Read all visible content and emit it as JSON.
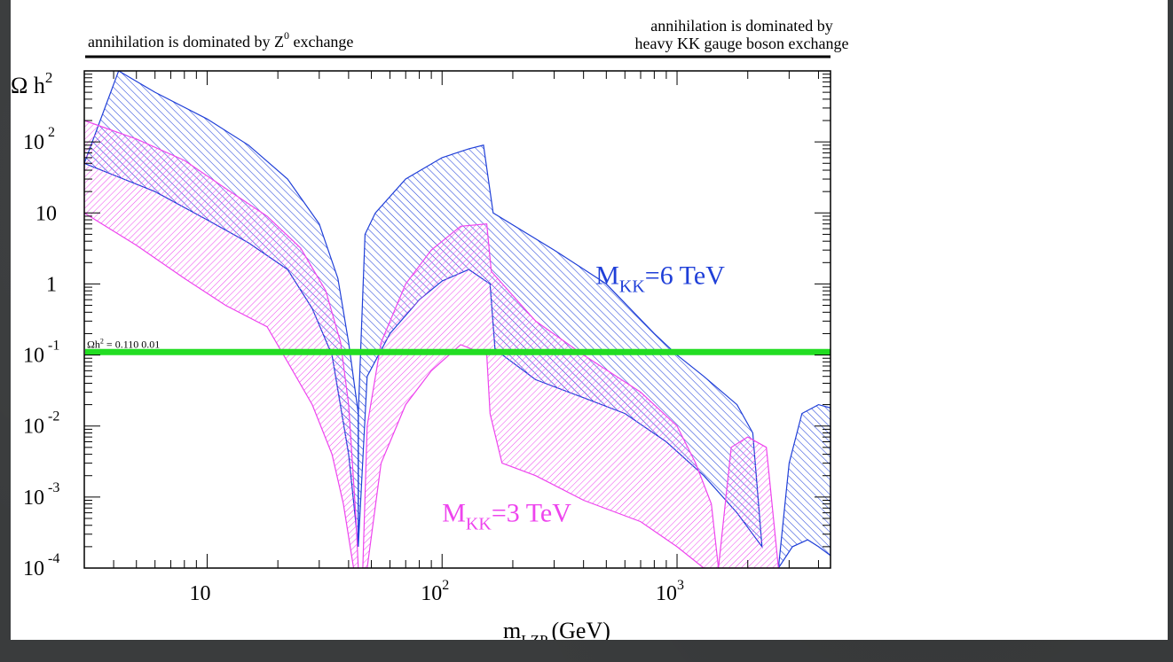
{
  "chart_data": {
    "type": "area",
    "x_scale": "log",
    "y_scale": "log",
    "xlim": [
      3,
      4500
    ],
    "ylim": [
      0.0001,
      1000
    ],
    "ylabel": "Ω h",
    "ylabel_sup": "2",
    "xlabel_main": "m",
    "xlabel_sub": "LZP",
    "xlabel_unit": "(GeV)",
    "x_ticks": [
      {
        "value": 10,
        "base": "10",
        "exp": ""
      },
      {
        "value": 100,
        "base": "10",
        "exp": "2"
      },
      {
        "value": 1000,
        "base": "10",
        "exp": "3"
      }
    ],
    "y_ticks": [
      {
        "value": 100,
        "base": "10",
        "exp": "2"
      },
      {
        "value": 10,
        "base": "10",
        "exp": ""
      },
      {
        "value": 1,
        "base": "1",
        "exp": ""
      },
      {
        "value": 0.1,
        "base": "10",
        "exp": "-1"
      },
      {
        "value": 0.01,
        "base": "10",
        "exp": "-2"
      },
      {
        "value": 0.001,
        "base": "10",
        "exp": "-3"
      },
      {
        "value": 0.0001,
        "base": "10",
        "exp": "-4"
      }
    ],
    "header_left": {
      "text": "annihilation is dominated by Z",
      "sup": "0",
      "tail": " exchange"
    },
    "header_right": {
      "line1": "annihilation is dominated by",
      "line2": "heavy KK gauge boson exchange"
    },
    "reference_line": {
      "value": 0.11,
      "label_pre": "Ωh",
      "label_sup": "2",
      "label_post": " = 0.110    0.01",
      "color": "#22dd22"
    },
    "series": [
      {
        "label_main": "M",
        "label_sub": "KK",
        "label_tail": "=6 TeV",
        "color": "#1f3fd8",
        "hatch": "backslash",
        "label_at": [
          450,
          1.0
        ],
        "bands": [
          {
            "upper": [
              [
                4.2,
                1000
              ],
              [
                6,
                500
              ],
              [
                10,
                210
              ],
              [
                15,
                90
              ],
              [
                22,
                30
              ],
              [
                30,
                7
              ],
              [
                36,
                1.2
              ],
              [
                40,
                0.15
              ],
              [
                44,
                0.015
              ]
            ],
            "lower": [
              [
                3,
                50
              ],
              [
                6,
                20
              ],
              [
                10,
                8
              ],
              [
                15,
                3.8
              ],
              [
                22,
                1.6
              ],
              [
                28,
                0.45
              ],
              [
                34,
                0.1
              ],
              [
                40,
                0.004
              ],
              [
                44,
                0.0002
              ]
            ]
          },
          {
            "upper": [
              [
                44,
                0.015
              ],
              [
                47,
                5
              ],
              [
                52,
                10
              ],
              [
                70,
                30
              ],
              [
                100,
                60
              ],
              [
                130,
                80
              ],
              [
                150,
                90
              ],
              [
                165,
                10
              ],
              [
                300,
                3
              ],
              [
                500,
                1
              ],
              [
                800,
                0.2
              ],
              [
                1000,
                0.1
              ],
              [
                1300,
                0.05
              ],
              [
                1800,
                0.02
              ],
              [
                2100,
                0.008
              ],
              [
                2300,
                0.0002
              ]
            ],
            "lower": [
              [
                44,
                0.0002
              ],
              [
                48,
                0.05
              ],
              [
                60,
                0.2
              ],
              [
                80,
                0.6
              ],
              [
                100,
                1.1
              ],
              [
                130,
                1.6
              ],
              [
                160,
                1
              ],
              [
                168,
                0.12
              ],
              [
                250,
                0.045
              ],
              [
                400,
                0.025
              ],
              [
                600,
                0.015
              ],
              [
                900,
                0.006
              ],
              [
                1300,
                0.002
              ],
              [
                1800,
                0.0006
              ],
              [
                2100,
                0.0003
              ],
              [
                2300,
                0.0002
              ]
            ]
          },
          {
            "upper": [
              [
                2700,
                0.0001
              ],
              [
                3000,
                0.003
              ],
              [
                3400,
                0.015
              ],
              [
                4000,
                0.02
              ],
              [
                4500,
                0.018
              ]
            ],
            "lower": [
              [
                2700,
                0.0001
              ],
              [
                3100,
                0.0002
              ],
              [
                3600,
                0.00025
              ],
              [
                4000,
                0.0002
              ],
              [
                4500,
                0.00015
              ]
            ]
          }
        ]
      },
      {
        "label_main": "M",
        "label_sub": "KK",
        "label_tail": "=3 TeV",
        "color": "#ee44ee",
        "hatch": "slash",
        "label_at": [
          100,
          0.00045
        ],
        "bands": [
          {
            "upper": [
              [
                3,
                200
              ],
              [
                5,
                110
              ],
              [
                8,
                55
              ],
              [
                12,
                22
              ],
              [
                18,
                9
              ],
              [
                25,
                3.2
              ],
              [
                32,
                0.8
              ],
              [
                37,
                0.15
              ],
              [
                40,
                0.02
              ],
              [
                43,
                0.0005
              ],
              [
                44,
                0.0001
              ]
            ],
            "lower": [
              [
                3,
                10
              ],
              [
                5,
                3.5
              ],
              [
                8,
                1.2
              ],
              [
                12,
                0.5
              ],
              [
                18,
                0.25
              ],
              [
                22,
                0.08
              ],
              [
                28,
                0.02
              ],
              [
                34,
                0.004
              ],
              [
                38,
                0.0008
              ],
              [
                42,
                0.0001
              ]
            ]
          },
          {
            "upper": [
              [
                46,
                0.0001
              ],
              [
                48,
                0.01
              ],
              [
                55,
                0.15
              ],
              [
                70,
                1
              ],
              [
                90,
                3
              ],
              [
                120,
                6.5
              ],
              [
                155,
                7
              ],
              [
                162,
                1.5
              ],
              [
                250,
                0.3
              ],
              [
                400,
                0.1
              ],
              [
                700,
                0.03
              ],
              [
                1000,
                0.01
              ],
              [
                1200,
                0.003
              ],
              [
                1400,
                0.0008
              ],
              [
                1500,
                0.0001
              ]
            ],
            "lower": [
              [
                48,
                0.0001
              ],
              [
                55,
                0.003
              ],
              [
                70,
                0.02
              ],
              [
                90,
                0.06
              ],
              [
                120,
                0.14
              ],
              [
                155,
                0.1
              ],
              [
                160,
                0.015
              ],
              [
                180,
                0.003
              ],
              [
                250,
                0.002
              ],
              [
                400,
                0.0009
              ],
              [
                700,
                0.00045
              ],
              [
                1000,
                0.0002
              ],
              [
                1300,
                0.0001
              ]
            ]
          },
          {
            "upper": [
              [
                1500,
                0.0001
              ],
              [
                1700,
                0.005
              ],
              [
                2000,
                0.007
              ],
              [
                2400,
                0.005
              ],
              [
                2700,
                0.0001
              ]
            ],
            "lower": [
              [
                1500,
                0.0001
              ],
              [
                1900,
                0.0001
              ],
              [
                2700,
                0.0001
              ]
            ]
          }
        ]
      }
    ]
  }
}
